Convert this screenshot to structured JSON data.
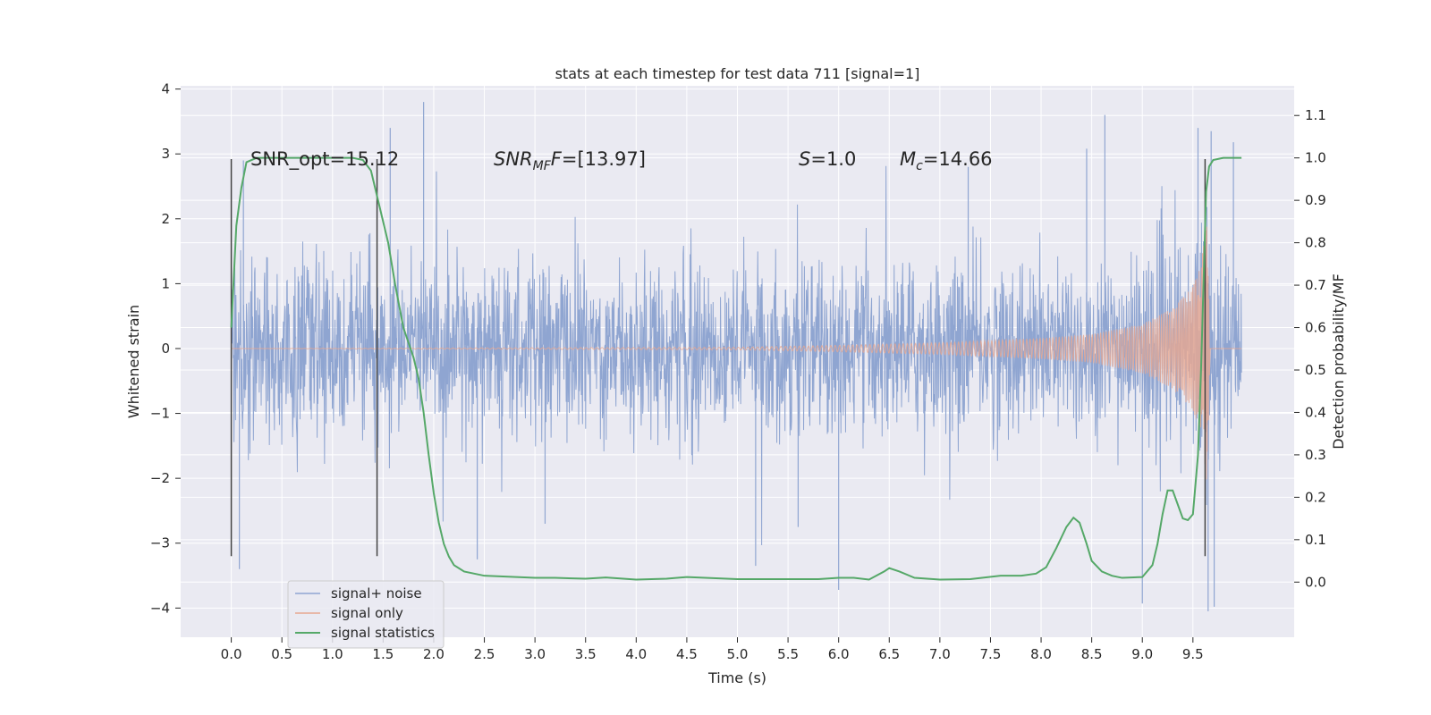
{
  "chart_data": {
    "type": "line",
    "title": "stats at each timestep for test data 711 [signal=1]",
    "xlabel": "Time (s)",
    "ylabel": "Whitened strain",
    "y2label": "Detection probability/MF",
    "xlim": [
      -0.5,
      10.5
    ],
    "ylim": [
      -4.45,
      4.05
    ],
    "y2lim": [
      -0.13,
      1.17
    ],
    "x_ticks": [
      "0.0",
      "0.5",
      "1.0",
      "1.5",
      "2.0",
      "2.5",
      "3.0",
      "3.5",
      "4.0",
      "4.5",
      "5.0",
      "5.5",
      "6.0",
      "6.5",
      "7.0",
      "7.5",
      "8.0",
      "8.5",
      "9.0",
      "9.5"
    ],
    "y_ticks": [
      "−4",
      "−3",
      "−2",
      "−1",
      "0",
      "1",
      "2",
      "3",
      "4"
    ],
    "y2_ticks": [
      "0.0",
      "0.1",
      "0.2",
      "0.3",
      "0.4",
      "0.5",
      "0.6",
      "0.7",
      "0.8",
      "0.9",
      "1.0",
      "1.1"
    ],
    "grid": true,
    "legend_position": "lower-left",
    "annotations": {
      "snr_opt": "SNR_opt=15.12",
      "snr_mf_base": "SNR",
      "snr_mf_sub": "MF",
      "snr_mf_val": "=[13.97]",
      "s_var": "S",
      "s_val": "=1.0",
      "mc_base": "M",
      "mc_sub": "c",
      "mc_val": "=14.66"
    },
    "vertical_markers_x": [
      0.0,
      1.44,
      9.62
    ],
    "series": [
      {
        "name": "signal+ noise",
        "axis": "left",
        "color": "#8fa5d1",
        "duration": [
          0.0,
          9.98
        ],
        "typical_envelope": [
          -1.8,
          2.1
        ],
        "extreme_peaks": [
          {
            "x": 0.08,
            "y": -3.4
          },
          {
            "x": 0.12,
            "y": 2.9
          },
          {
            "x": 1.57,
            "y": 3.4
          },
          {
            "x": 1.9,
            "y": 3.8
          },
          {
            "x": 2.43,
            "y": -3.25
          },
          {
            "x": 3.1,
            "y": -2.7
          },
          {
            "x": 5.18,
            "y": -3.35
          },
          {
            "x": 5.6,
            "y": -2.75
          },
          {
            "x": 6.0,
            "y": -3.72
          },
          {
            "x": 7.28,
            "y": 2.8
          },
          {
            "x": 8.45,
            "y": 3.08
          },
          {
            "x": 8.63,
            "y": 3.6
          },
          {
            "x": 9.0,
            "y": -3.93
          },
          {
            "x": 9.55,
            "y": 3.4
          },
          {
            "x": 9.65,
            "y": -4.05
          },
          {
            "x": 9.68,
            "y": 3.35
          },
          {
            "x": 9.71,
            "y": -3.98
          },
          {
            "x": 9.9,
            "y": 3.18
          }
        ]
      },
      {
        "name": "signal only",
        "axis": "left",
        "color": "#e8a890",
        "chirp_amplitude": [
          {
            "x": 0.0,
            "y": 0.0
          },
          {
            "x": 5.0,
            "y": 0.02
          },
          {
            "x": 6.0,
            "y": 0.05
          },
          {
            "x": 7.0,
            "y": 0.09
          },
          {
            "x": 8.0,
            "y": 0.16
          },
          {
            "x": 8.5,
            "y": 0.22
          },
          {
            "x": 9.0,
            "y": 0.38
          },
          {
            "x": 9.3,
            "y": 0.62
          },
          {
            "x": 9.5,
            "y": 0.95
          },
          {
            "x": 9.58,
            "y": 1.3
          },
          {
            "x": 9.64,
            "y": 2.1
          },
          {
            "x": 9.67,
            "y": 0.0
          },
          {
            "x": 9.98,
            "y": 0.0
          }
        ]
      },
      {
        "name": "signal statistics",
        "axis": "right",
        "color": "#55a868",
        "x": [
          0.0,
          0.05,
          0.1,
          0.15,
          0.25,
          0.5,
          0.8,
          1.0,
          1.2,
          1.3,
          1.38,
          1.45,
          1.55,
          1.62,
          1.7,
          1.8,
          1.85,
          1.9,
          1.95,
          2.0,
          2.05,
          2.1,
          2.15,
          2.2,
          2.3,
          2.5,
          3.0,
          3.2,
          3.5,
          3.7,
          4.0,
          4.3,
          4.5,
          5.0,
          5.5,
          5.8,
          6.0,
          6.15,
          6.3,
          6.45,
          6.5,
          6.6,
          6.75,
          7.0,
          7.3,
          7.6,
          7.8,
          7.95,
          8.05,
          8.15,
          8.25,
          8.32,
          8.38,
          8.45,
          8.5,
          8.6,
          8.7,
          8.8,
          9.0,
          9.1,
          9.15,
          9.2,
          9.25,
          9.3,
          9.4,
          9.45,
          9.5,
          9.55,
          9.58,
          9.61,
          9.63,
          9.66,
          9.7,
          9.8,
          9.98
        ],
        "y": [
          0.6,
          0.84,
          0.93,
          0.99,
          1.0,
          1.0,
          1.0,
          1.0,
          1.0,
          0.995,
          0.97,
          0.9,
          0.8,
          0.7,
          0.6,
          0.53,
          0.48,
          0.4,
          0.3,
          0.21,
          0.14,
          0.09,
          0.06,
          0.04,
          0.025,
          0.015,
          0.01,
          0.01,
          0.008,
          0.011,
          0.006,
          0.008,
          0.012,
          0.007,
          0.007,
          0.007,
          0.01,
          0.01,
          0.006,
          0.025,
          0.033,
          0.025,
          0.01,
          0.006,
          0.007,
          0.015,
          0.015,
          0.02,
          0.035,
          0.08,
          0.13,
          0.152,
          0.14,
          0.09,
          0.05,
          0.025,
          0.015,
          0.01,
          0.012,
          0.04,
          0.09,
          0.16,
          0.216,
          0.216,
          0.15,
          0.146,
          0.16,
          0.3,
          0.5,
          0.75,
          0.92,
          0.98,
          0.995,
          1.0,
          1.0
        ]
      }
    ]
  }
}
